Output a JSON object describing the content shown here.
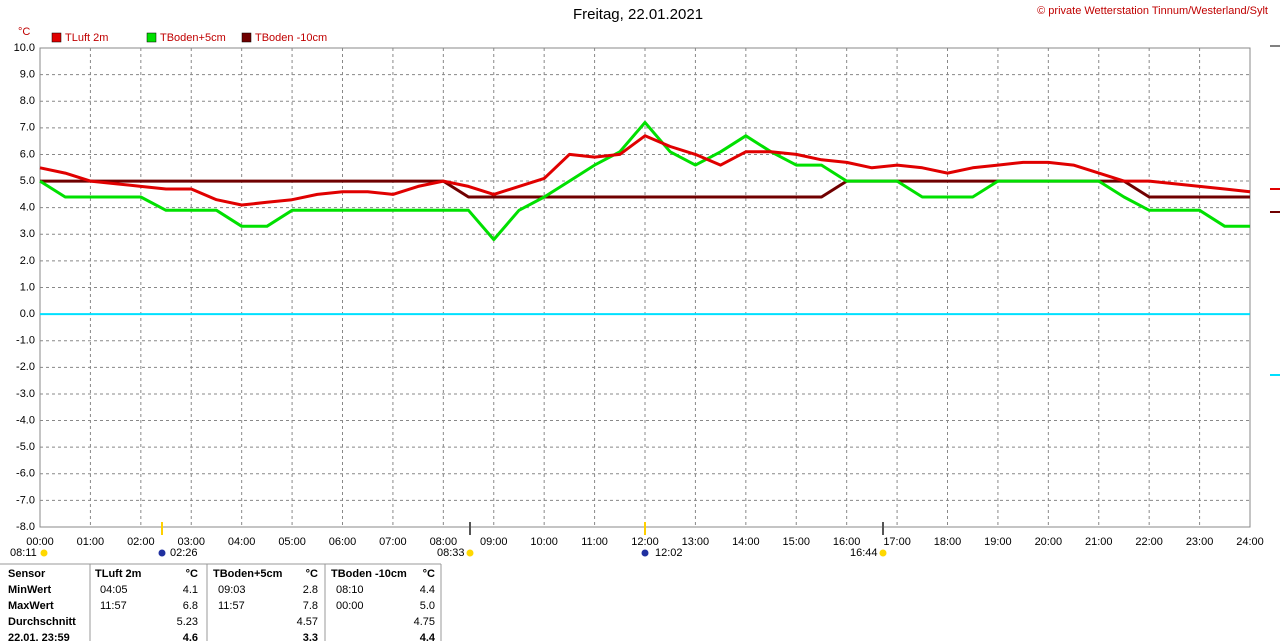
{
  "chart_data": {
    "type": "line",
    "title": "Freitag, 22.01.2021",
    "credit": "© private Wetterstation Tinnum/Westerland/Sylt",
    "y_label": "°C",
    "x": [
      0,
      0.5,
      1,
      1.5,
      2,
      2.5,
      3,
      3.5,
      4,
      4.5,
      5,
      5.5,
      6,
      6.5,
      7,
      7.5,
      8,
      8.5,
      9,
      9.5,
      10,
      10.5,
      11,
      11.5,
      12,
      12.5,
      13,
      13.5,
      14,
      14.5,
      15,
      15.5,
      16,
      16.5,
      17,
      17.5,
      18,
      18.5,
      19,
      19.5,
      20,
      20.5,
      21,
      21.5,
      22,
      22.5,
      23,
      23.5,
      24
    ],
    "series": [
      {
        "name": "TLuft 2m",
        "color": "#e00000",
        "values": [
          5.5,
          5.3,
          5.0,
          4.9,
          4.8,
          4.7,
          4.7,
          4.3,
          4.1,
          4.2,
          4.3,
          4.5,
          4.6,
          4.6,
          4.5,
          4.8,
          5.0,
          4.8,
          4.5,
          4.8,
          5.1,
          6.0,
          5.9,
          6.0,
          6.7,
          6.3,
          6.0,
          5.6,
          6.1,
          6.1,
          6.0,
          5.8,
          5.7,
          5.5,
          5.6,
          5.5,
          5.3,
          5.5,
          5.6,
          5.7,
          5.7,
          5.6,
          5.3,
          5.0,
          5.0,
          4.9,
          4.8,
          4.7,
          4.6
        ]
      },
      {
        "name": "TBoden+5cm",
        "color": "#00e000",
        "values": [
          5.0,
          4.4,
          4.4,
          4.4,
          4.4,
          3.9,
          3.9,
          3.9,
          3.3,
          3.3,
          3.9,
          3.9,
          3.9,
          3.9,
          3.9,
          3.9,
          3.9,
          3.9,
          2.8,
          3.9,
          4.4,
          5.0,
          5.6,
          6.1,
          7.2,
          6.1,
          5.6,
          6.1,
          6.7,
          6.1,
          5.6,
          5.6,
          5.0,
          5.0,
          5.0,
          4.4,
          4.4,
          4.4,
          5.0,
          5.0,
          5.0,
          5.0,
          5.0,
          4.4,
          3.9,
          3.9,
          3.9,
          3.3,
          3.3
        ]
      },
      {
        "name": "TBoden -10cm",
        "color": "#700000",
        "values": [
          5.0,
          5.0,
          5.0,
          5.0,
          5.0,
          5.0,
          5.0,
          5.0,
          5.0,
          5.0,
          5.0,
          5.0,
          5.0,
          5.0,
          5.0,
          5.0,
          5.0,
          4.4,
          4.4,
          4.4,
          4.4,
          4.4,
          4.4,
          4.4,
          4.4,
          4.4,
          4.4,
          4.4,
          4.4,
          4.4,
          4.4,
          4.4,
          5.0,
          5.0,
          5.0,
          5.0,
          5.0,
          5.0,
          5.0,
          5.0,
          5.0,
          5.0,
          5.0,
          5.0,
          4.4,
          4.4,
          4.4,
          4.4,
          4.4
        ]
      }
    ],
    "xlim": [
      0,
      24
    ],
    "xticks": [
      {
        "value": 0,
        "label": "00:00"
      },
      {
        "value": 1,
        "label": "01:00"
      },
      {
        "value": 2,
        "label": "02:00"
      },
      {
        "value": 3,
        "label": "03:00"
      },
      {
        "value": 4,
        "label": "04:00"
      },
      {
        "value": 5,
        "label": "05:00"
      },
      {
        "value": 6,
        "label": "06:00"
      },
      {
        "value": 7,
        "label": "07:00"
      },
      {
        "value": 8,
        "label": "08:00"
      },
      {
        "value": 9,
        "label": "09:00"
      },
      {
        "value": 10,
        "label": "10:00"
      },
      {
        "value": 11,
        "label": "11:00"
      },
      {
        "value": 12,
        "label": "12:00"
      },
      {
        "value": 13,
        "label": "13:00"
      },
      {
        "value": 14,
        "label": "14:00"
      },
      {
        "value": 15,
        "label": "15:00"
      },
      {
        "value": 16,
        "label": "16:00"
      },
      {
        "value": 17,
        "label": "17:00"
      },
      {
        "value": 18,
        "label": "18:00"
      },
      {
        "value": 19,
        "label": "19:00"
      },
      {
        "value": 20,
        "label": "20:00"
      },
      {
        "value": 21,
        "label": "21:00"
      },
      {
        "value": 22,
        "label": "22:00"
      },
      {
        "value": 23,
        "label": "23:00"
      },
      {
        "value": 24,
        "label": "24:00"
      }
    ],
    "ylim": [
      -8,
      10
    ],
    "yticks": [
      {
        "value": 10,
        "label": "10.0"
      },
      {
        "value": 9,
        "label": "9.0"
      },
      {
        "value": 8,
        "label": "8.0"
      },
      {
        "value": 7,
        "label": "7.0"
      },
      {
        "value": 6,
        "label": "6.0"
      },
      {
        "value": 5,
        "label": "5.0"
      },
      {
        "value": 4,
        "label": "4.0"
      },
      {
        "value": 3,
        "label": "3.0"
      },
      {
        "value": 2,
        "label": "2.0"
      },
      {
        "value": 1,
        "label": "1.0"
      },
      {
        "value": 0,
        "label": "0.0"
      },
      {
        "value": -1,
        "label": "-1.0"
      },
      {
        "value": -2,
        "label": "-2.0"
      },
      {
        "value": -3,
        "label": "-3.0"
      },
      {
        "value": -4,
        "label": "-4.0"
      },
      {
        "value": -5,
        "label": "-5.0"
      },
      {
        "value": -6,
        "label": "-6.0"
      },
      {
        "value": -7,
        "label": "-7.0"
      },
      {
        "value": -8,
        "label": "-8.0"
      }
    ],
    "grid": true,
    "zero_line_color": "#00e0ff",
    "legend": "top-left",
    "events": [
      "08:11",
      "02:26",
      "08:33",
      "12:02",
      "16:44"
    ]
  },
  "table": {
    "rows": [
      [
        "Sensor",
        "TLuft 2m",
        "°C",
        "TBoden+5cm",
        "°C",
        "TBoden -10cm",
        "°C"
      ],
      [
        "MinWert",
        "04:05",
        "4.1",
        "09:03",
        "2.8",
        "08:10",
        "4.4"
      ],
      [
        "MaxWert",
        "11:57",
        "6.8",
        "11:57",
        "7.8",
        "00:00",
        "5.0"
      ],
      [
        "Durchschnitt",
        "",
        "5.23",
        "",
        "4.57",
        "",
        "4.75"
      ],
      [
        "22.01. 23:59",
        "",
        "4.6",
        "",
        "3.3",
        "",
        "4.4"
      ]
    ]
  }
}
